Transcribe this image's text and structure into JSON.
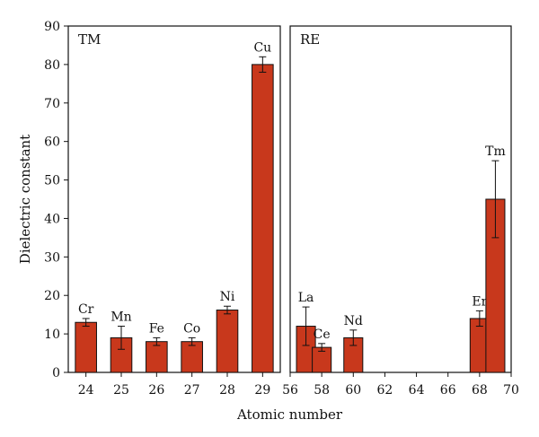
{
  "chart_data": {
    "type": "bar",
    "xlabel": "Atomic number",
    "ylabel": "Dielectric constant",
    "ylim": [
      0,
      90
    ],
    "yticks": [
      0,
      10,
      20,
      30,
      40,
      50,
      60,
      70,
      80,
      90
    ],
    "bar_color": "#c8381c",
    "panels": [
      {
        "label": "TM",
        "xlim": [
          23.5,
          29.5
        ],
        "xticks": [
          24,
          25,
          26,
          27,
          28,
          29
        ],
        "bar_width": 0.6,
        "bars": [
          {
            "x": 24,
            "label": "Cr",
            "value": 13,
            "err": 1
          },
          {
            "x": 25,
            "label": "Mn",
            "value": 9,
            "err": 3
          },
          {
            "x": 26,
            "label": "Fe",
            "value": 8,
            "err": 1
          },
          {
            "x": 27,
            "label": "Co",
            "value": 8,
            "err": 1
          },
          {
            "x": 28,
            "label": "Ni",
            "value": 16.2,
            "err": 1
          },
          {
            "x": 29,
            "label": "Cu",
            "value": 80,
            "err": 2
          }
        ]
      },
      {
        "label": "RE",
        "xlim": [
          56,
          70
        ],
        "xticks": [
          56,
          58,
          60,
          62,
          64,
          66,
          68,
          70
        ],
        "bar_width": 1.2,
        "bars": [
          {
            "x": 57,
            "label": "La",
            "value": 12,
            "err": 5
          },
          {
            "x": 58,
            "label": "Ce",
            "value": 6.5,
            "err": 1
          },
          {
            "x": 60,
            "label": "Nd",
            "value": 9,
            "err": 2
          },
          {
            "x": 68,
            "label": "Er",
            "value": 14,
            "err": 2
          },
          {
            "x": 69,
            "label": "Tm",
            "value": 45,
            "err": 10
          }
        ]
      }
    ]
  }
}
